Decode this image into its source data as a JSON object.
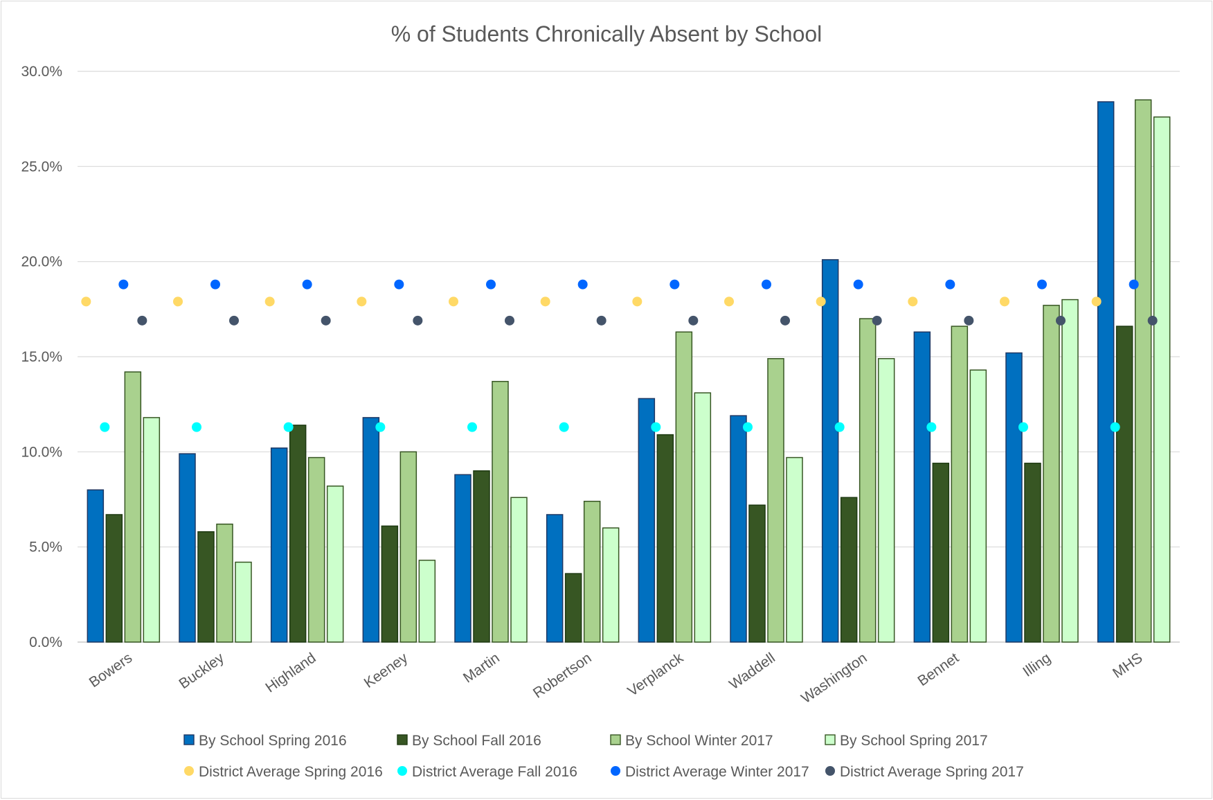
{
  "chart_data": {
    "type": "bar",
    "title": "% of Students Chronically Absent by School",
    "xlabel": "",
    "ylabel": "",
    "ylim": [
      0,
      30
    ],
    "yticks": [
      "0.0%",
      "5.0%",
      "10.0%",
      "15.0%",
      "20.0%",
      "25.0%",
      "30.0%"
    ],
    "grid": true,
    "legend_position": "bottom",
    "categories": [
      "Bowers",
      "Buckley",
      "Highland",
      "Keeney",
      "Martin",
      "Robertson",
      "Verplanck",
      "Waddell",
      "Washington",
      "Bennet",
      "Illing",
      "MHS"
    ],
    "series": [
      {
        "name": "By School Spring 2016",
        "kind": "bar",
        "color": "#0070c0",
        "edge": "#1f3864",
        "values": [
          8.0,
          9.9,
          10.2,
          11.8,
          8.8,
          6.7,
          12.8,
          11.9,
          20.1,
          16.3,
          15.2,
          28.4
        ]
      },
      {
        "name": "By School Fall 2016",
        "kind": "bar",
        "color": "#375623",
        "edge": "#1e3a12",
        "values": [
          6.7,
          5.8,
          11.4,
          6.1,
          9.0,
          3.6,
          10.9,
          7.2,
          7.6,
          9.4,
          9.4,
          16.6
        ]
      },
      {
        "name": "By School Winter 2017",
        "kind": "bar",
        "color": "#a9d18e",
        "edge": "#375623",
        "values": [
          14.2,
          6.2,
          9.7,
          10.0,
          13.7,
          7.4,
          16.3,
          14.9,
          17.0,
          16.6,
          17.7,
          28.5
        ]
      },
      {
        "name": "By School Spring 2017",
        "kind": "bar",
        "color": "#ccffcc",
        "edge": "#375623",
        "values": [
          11.8,
          4.2,
          8.2,
          4.3,
          7.6,
          6.0,
          13.1,
          9.7,
          14.9,
          14.3,
          18.0,
          27.6
        ]
      },
      {
        "name": "District Average Spring 2016",
        "kind": "marker",
        "color": "#ffd966",
        "values": [
          17.9,
          17.9,
          17.9,
          17.9,
          17.9,
          17.9,
          17.9,
          17.9,
          17.9,
          17.9,
          17.9,
          17.9
        ]
      },
      {
        "name": "District Average Fall 2016",
        "kind": "marker",
        "color": "#00ffff",
        "values": [
          11.3,
          11.3,
          11.3,
          11.3,
          11.3,
          11.3,
          11.3,
          11.3,
          11.3,
          11.3,
          11.3,
          11.3
        ]
      },
      {
        "name": "District Average Winter 2017",
        "kind": "marker",
        "color": "#0066ff",
        "values": [
          18.8,
          18.8,
          18.8,
          18.8,
          18.8,
          18.8,
          18.8,
          18.8,
          18.8,
          18.8,
          18.8,
          18.8
        ]
      },
      {
        "name": "District Average Spring 2017",
        "kind": "marker",
        "color": "#44546a",
        "values": [
          16.9,
          16.9,
          16.9,
          16.9,
          16.9,
          16.9,
          16.9,
          16.9,
          16.9,
          16.9,
          16.9,
          16.9
        ]
      }
    ]
  }
}
